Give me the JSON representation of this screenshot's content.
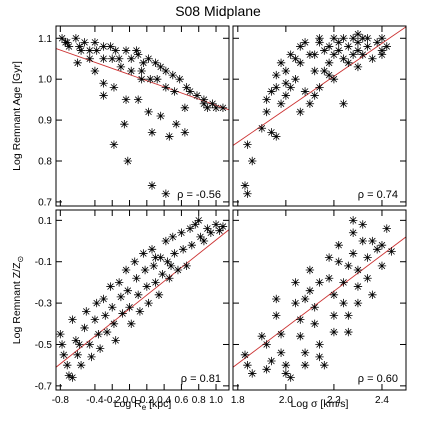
{
  "chart_data": {
    "type": "scatter",
    "title": "S08 Midplane",
    "colors": {
      "marker": "#000000",
      "fit_line": "#cc3333"
    },
    "x_axes": [
      {
        "label": "Log R",
        "sub": "e",
        "unit": " [kpc]",
        "range": [
          -0.85,
          1.15
        ],
        "ticks": [
          -0.8,
          -0.4,
          -0.2,
          0.0,
          0.2,
          0.4,
          0.6,
          0.8,
          1.0
        ],
        "tick_labels": [
          "-0.8",
          "-0.4",
          "-0.2",
          "0.0",
          "0.2",
          "0.4",
          "0.6",
          "0.8",
          "1.0"
        ]
      },
      {
        "label": "Log σ [km/s]",
        "range": [
          1.78,
          2.5
        ],
        "ticks": [
          1.8,
          2.0,
          2.2,
          2.4
        ],
        "tick_labels": [
          "1.8",
          "2.0",
          "2.2",
          "2.4"
        ]
      }
    ],
    "y_axes": [
      {
        "label": "Log Remnant Age [Gyr]",
        "range": [
          0.69,
          1.13
        ],
        "ticks": [
          0.7,
          0.8,
          0.9,
          1.0,
          1.1
        ],
        "tick_labels": [
          "0.7",
          "0.8",
          "0.9",
          "1.0",
          "1.1"
        ]
      },
      {
        "label": "Log Remnant Z/Z",
        "sub": "⊙",
        "range": [
          -0.72,
          0.15
        ],
        "ticks": [
          -0.7,
          -0.5,
          -0.3,
          -0.1,
          0.1
        ],
        "tick_labels": [
          "-0.7",
          "-0.5",
          "-0.3",
          "-0.1",
          "0.1"
        ]
      }
    ],
    "panels": [
      {
        "row": 0,
        "col": 0,
        "rho": "ρ = -0.56",
        "fit": [
          [
            -0.85,
            1.075
          ],
          [
            1.15,
            0.925
          ]
        ],
        "points": [
          [
            -0.78,
            1.1
          ],
          [
            -0.74,
            1.09
          ],
          [
            -0.7,
            1.08
          ],
          [
            -0.62,
            1.1
          ],
          [
            -0.58,
            1.08
          ],
          [
            -0.52,
            1.09
          ],
          [
            -0.46,
            1.07
          ],
          [
            -0.4,
            1.09
          ],
          [
            -0.38,
            1.07
          ],
          [
            -0.3,
            1.08
          ],
          [
            -0.22,
            1.08
          ],
          [
            -0.16,
            1.07
          ],
          [
            -0.12,
            1.05
          ],
          [
            -0.04,
            1.07
          ],
          [
            0.02,
            1.05
          ],
          [
            0.1,
            1.06
          ],
          [
            0.16,
            1.04
          ],
          [
            0.22,
            1.05
          ],
          [
            0.3,
            1.04
          ],
          [
            0.36,
            1.03
          ],
          [
            0.42,
            1.02
          ],
          [
            0.5,
            1.01
          ],
          [
            0.58,
            1.0
          ],
          [
            0.66,
            0.98
          ],
          [
            0.7,
            0.97
          ],
          [
            0.78,
            0.96
          ],
          [
            0.86,
            0.94
          ],
          [
            0.9,
            0.93
          ],
          [
            -0.72,
            1.09
          ],
          [
            -0.56,
            1.07
          ],
          [
            -0.46,
            1.05
          ],
          [
            -0.3,
            1.05
          ],
          [
            -0.2,
            1.05
          ],
          [
            -0.1,
            1.03
          ],
          [
            0.02,
            1.02
          ],
          [
            0.14,
            1.02
          ],
          [
            0.24,
            1.0
          ],
          [
            0.32,
            1.0
          ],
          [
            0.42,
            0.98
          ],
          [
            0.52,
            0.97
          ],
          [
            0.64,
            0.93
          ],
          [
            -0.4,
            1.02
          ],
          [
            -0.3,
            0.99
          ],
          [
            -0.18,
            0.98
          ],
          [
            -0.04,
            0.95
          ],
          [
            0.1,
            0.95
          ],
          [
            0.22,
            0.92
          ],
          [
            0.36,
            0.91
          ],
          [
            0.54,
            0.89
          ],
          [
            0.64,
            0.87
          ],
          [
            0.86,
            0.95
          ],
          [
            -0.3,
            0.96
          ],
          [
            -0.06,
            0.89
          ],
          [
            0.26,
            0.87
          ],
          [
            0.46,
            0.86
          ],
          [
            -0.18,
            0.84
          ],
          [
            -0.02,
            0.8
          ],
          [
            0.26,
            0.74
          ],
          [
            0.42,
            0.72
          ],
          [
            1.08,
            0.93
          ],
          [
            1.0,
            0.93
          ],
          [
            0.96,
            0.94
          ],
          [
            -0.6,
            1.04
          ],
          [
            0.08,
            1.07
          ],
          [
            0.14,
            1.0
          ]
        ]
      },
      {
        "row": 0,
        "col": 1,
        "rho": "ρ = 0.74",
        "fit": [
          [
            1.78,
            0.838
          ],
          [
            2.5,
            1.128
          ]
        ],
        "points": [
          [
            1.84,
            0.84
          ],
          [
            1.83,
            0.74
          ],
          [
            1.84,
            0.72
          ],
          [
            1.86,
            0.8
          ],
          [
            1.9,
            0.88
          ],
          [
            1.92,
            0.92
          ],
          [
            1.94,
            0.97
          ],
          [
            1.96,
            1.01
          ],
          [
            1.98,
            1.04
          ],
          [
            1.96,
            0.98
          ],
          [
            1.98,
            0.94
          ],
          [
            1.94,
            0.87
          ],
          [
            1.96,
            0.86
          ],
          [
            2.0,
            1.02
          ],
          [
            2.02,
            1.06
          ],
          [
            2.04,
            1.05
          ],
          [
            2.06,
            1.08
          ],
          [
            2.06,
            1.04
          ],
          [
            2.04,
            1.0
          ],
          [
            2.08,
            1.09
          ],
          [
            2.1,
            1.06
          ],
          [
            2.12,
            1.06
          ],
          [
            2.14,
            1.09
          ],
          [
            2.16,
            1.07
          ],
          [
            2.18,
            1.08
          ],
          [
            2.2,
            1.1
          ],
          [
            2.22,
            1.09
          ],
          [
            2.24,
            1.1
          ],
          [
            2.22,
            1.07
          ],
          [
            2.2,
            1.06
          ],
          [
            2.18,
            1.04
          ],
          [
            2.16,
            1.02
          ],
          [
            2.14,
            0.98
          ],
          [
            2.12,
            0.96
          ],
          [
            2.1,
            0.94
          ],
          [
            2.24,
            1.05
          ],
          [
            2.26,
            1.08
          ],
          [
            2.28,
            1.1
          ],
          [
            2.3,
            1.11
          ],
          [
            2.3,
            1.07
          ],
          [
            2.32,
            1.1
          ],
          [
            2.32,
            1.06
          ],
          [
            2.34,
            1.08
          ],
          [
            2.38,
            1.09
          ],
          [
            2.4,
            1.06
          ],
          [
            2.42,
            1.08
          ],
          [
            2.4,
            1.1
          ],
          [
            2.36,
            1.05
          ],
          [
            2.3,
            1.03
          ],
          [
            2.24,
            0.94
          ],
          [
            2.2,
            1.0
          ],
          [
            2.06,
            0.92
          ],
          [
            2.08,
            0.97
          ],
          [
            2.0,
            0.99
          ],
          [
            2.14,
            1.1
          ],
          [
            2.26,
            1.04
          ],
          [
            2.28,
            1.06
          ],
          [
            2.3,
            1.09
          ],
          [
            2.34,
            1.1
          ],
          [
            2.18,
            1.01
          ],
          [
            2.12,
            1.02
          ],
          [
            2.0,
            0.96
          ],
          [
            1.92,
            0.95
          ],
          [
            2.02,
            0.98
          ],
          [
            2.4,
            1.07
          ]
        ]
      },
      {
        "row": 1,
        "col": 0,
        "rho": "ρ = 0.81",
        "fit": [
          [
            -0.85,
            -0.61
          ],
          [
            1.15,
            0.055
          ]
        ],
        "points": [
          [
            -0.8,
            -0.45
          ],
          [
            -0.78,
            -0.5
          ],
          [
            -0.76,
            -0.55
          ],
          [
            -0.72,
            -0.6
          ],
          [
            -0.7,
            -0.65
          ],
          [
            -0.66,
            -0.38
          ],
          [
            -0.62,
            -0.48
          ],
          [
            -0.6,
            -0.55
          ],
          [
            -0.56,
            -0.6
          ],
          [
            -0.52,
            -0.42
          ],
          [
            -0.5,
            -0.34
          ],
          [
            -0.46,
            -0.5
          ],
          [
            -0.44,
            -0.56
          ],
          [
            -0.4,
            -0.38
          ],
          [
            -0.38,
            -0.3
          ],
          [
            -0.36,
            -0.45
          ],
          [
            -0.34,
            -0.52
          ],
          [
            -0.3,
            -0.28
          ],
          [
            -0.28,
            -0.36
          ],
          [
            -0.26,
            -0.44
          ],
          [
            -0.22,
            -0.22
          ],
          [
            -0.2,
            -0.32
          ],
          [
            -0.18,
            -0.4
          ],
          [
            -0.16,
            -0.48
          ],
          [
            -0.12,
            -0.2
          ],
          [
            -0.1,
            -0.27
          ],
          [
            -0.08,
            -0.35
          ],
          [
            -0.04,
            -0.14
          ],
          [
            -0.02,
            -0.24
          ],
          [
            0.0,
            -0.32
          ],
          [
            0.02,
            -0.4
          ],
          [
            0.06,
            -0.1
          ],
          [
            0.08,
            -0.18
          ],
          [
            0.1,
            -0.26
          ],
          [
            0.12,
            -0.34
          ],
          [
            0.16,
            -0.06
          ],
          [
            0.18,
            -0.14
          ],
          [
            0.2,
            -0.22
          ],
          [
            0.22,
            -0.3
          ],
          [
            0.26,
            -0.04
          ],
          [
            0.28,
            -0.12
          ],
          [
            0.3,
            -0.2
          ],
          [
            0.34,
            -0.26
          ],
          [
            0.36,
            -0.08
          ],
          [
            0.38,
            -0.16
          ],
          [
            0.42,
            0.0
          ],
          [
            0.44,
            -0.1
          ],
          [
            0.46,
            -0.18
          ],
          [
            0.5,
            0.02
          ],
          [
            0.52,
            -0.06
          ],
          [
            0.56,
            -0.14
          ],
          [
            0.6,
            0.04
          ],
          [
            0.62,
            -0.04
          ],
          [
            0.66,
            -0.12
          ],
          [
            0.7,
            0.06
          ],
          [
            0.72,
            -0.02
          ],
          [
            0.76,
            0.08
          ],
          [
            0.8,
            0.1
          ],
          [
            0.82,
            0.02
          ],
          [
            0.86,
            0.0
          ],
          [
            0.9,
            0.06
          ],
          [
            0.94,
            0.04
          ],
          [
            1.0,
            0.08
          ],
          [
            1.04,
            0.05
          ],
          [
            1.08,
            0.07
          ],
          [
            -0.66,
            -0.66
          ],
          [
            -0.58,
            -0.5
          ],
          [
            0.3,
            -0.08
          ],
          [
            0.48,
            -0.12
          ]
        ]
      },
      {
        "row": 1,
        "col": 1,
        "rho": "ρ = 0.60",
        "fit": [
          [
            1.78,
            -0.61
          ],
          [
            2.5,
            0.02
          ]
        ],
        "points": [
          [
            1.83,
            -0.55
          ],
          [
            1.84,
            -0.6
          ],
          [
            1.86,
            -0.64
          ],
          [
            1.9,
            -0.46
          ],
          [
            1.92,
            -0.5
          ],
          [
            1.94,
            -0.58
          ],
          [
            1.96,
            -0.28
          ],
          [
            1.96,
            -0.36
          ],
          [
            1.98,
            -0.45
          ],
          [
            1.98,
            -0.54
          ],
          [
            2.0,
            -0.6
          ],
          [
            2.0,
            -0.64
          ],
          [
            2.04,
            -0.2
          ],
          [
            2.04,
            -0.3
          ],
          [
            2.06,
            -0.38
          ],
          [
            2.06,
            -0.46
          ],
          [
            2.08,
            -0.54
          ],
          [
            2.08,
            -0.6
          ],
          [
            2.1,
            -0.14
          ],
          [
            2.1,
            -0.24
          ],
          [
            2.12,
            -0.32
          ],
          [
            2.12,
            -0.4
          ],
          [
            2.14,
            -0.5
          ],
          [
            2.14,
            -0.56
          ],
          [
            2.18,
            -0.08
          ],
          [
            2.18,
            -0.18
          ],
          [
            2.2,
            -0.26
          ],
          [
            2.2,
            -0.36
          ],
          [
            2.2,
            -0.44
          ],
          [
            2.22,
            -0.02
          ],
          [
            2.22,
            -0.1
          ],
          [
            2.24,
            -0.2
          ],
          [
            2.24,
            -0.3
          ],
          [
            2.26,
            -0.36
          ],
          [
            2.28,
            0.04
          ],
          [
            2.28,
            -0.06
          ],
          [
            2.3,
            -0.14
          ],
          [
            2.3,
            -0.22
          ],
          [
            2.3,
            -0.3
          ],
          [
            2.32,
            0.08
          ],
          [
            2.32,
            0.0
          ],
          [
            2.34,
            -0.08
          ],
          [
            2.34,
            -0.18
          ],
          [
            2.38,
            -0.04
          ],
          [
            2.4,
            -0.12
          ],
          [
            2.4,
            -0.02
          ],
          [
            2.42,
            0.06
          ],
          [
            2.36,
            -0.26
          ],
          [
            2.26,
            -0.44
          ],
          [
            2.16,
            -0.6
          ],
          [
            2.02,
            -0.66
          ],
          [
            1.92,
            -0.62
          ],
          [
            2.08,
            -0.28
          ],
          [
            2.14,
            -0.2
          ],
          [
            2.26,
            -0.12
          ],
          [
            2.36,
            0.0
          ],
          [
            2.28,
            0.1
          ],
          [
            2.44,
            -0.05
          ]
        ]
      }
    ]
  }
}
